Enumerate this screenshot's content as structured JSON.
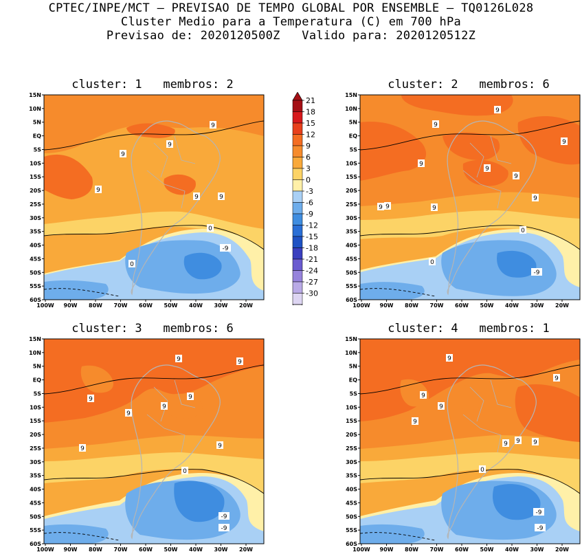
{
  "header": {
    "line1": "CPTEC/INPE/MCT – PREVISAO DE TEMPO GLOBAL POR ENSEMBLE – TQ0126L028",
    "line2": "Cluster Medio para a Temperatura (C) em 700 hPa",
    "line3": "Previsao de: 2020120500Z   Valido para: 2020120512Z"
  },
  "panels": [
    {
      "title": "cluster: 1   membros: 2",
      "labels": [
        "9",
        "9",
        "9",
        "9",
        "9",
        "9",
        "0",
        "0",
        "-9"
      ]
    },
    {
      "title": "cluster: 2   membros: 6",
      "labels": [
        "9",
        "9",
        "9",
        "9",
        "9",
        "9",
        "9",
        "9",
        "9",
        "9",
        "0",
        "0",
        "-9"
      ]
    },
    {
      "title": "cluster: 3   membros: 6",
      "labels": [
        "9",
        "9",
        "9",
        "9",
        "9",
        "9",
        "9",
        "9",
        "0",
        "-9",
        "-9"
      ]
    },
    {
      "title": "cluster: 4   membros: 1",
      "labels": [
        "9",
        "9",
        "9",
        "9",
        "9",
        "9",
        "9",
        "9",
        "0",
        "-9",
        "-9"
      ]
    }
  ],
  "axes": {
    "lat_ticks": [
      "15N",
      "10N",
      "5N",
      "EQ",
      "5S",
      "10S",
      "15S",
      "20S",
      "25S",
      "30S",
      "35S",
      "40S",
      "45S",
      "50S",
      "55S",
      "60S"
    ],
    "lon_ticks": [
      "100W",
      "90W",
      "80W",
      "70W",
      "60W",
      "50W",
      "40W",
      "30W",
      "20W"
    ]
  },
  "legend": {
    "values": [
      "21",
      "18",
      "15",
      "12",
      "9",
      "6",
      "3",
      "0",
      "-3",
      "-6",
      "-9",
      "-12",
      "-15",
      "-18",
      "-21",
      "-24",
      "-27",
      "-30"
    ],
    "colors": [
      "#a50f15",
      "#d7191c",
      "#e8401c",
      "#f46d22",
      "#f68b2c",
      "#f9a93a",
      "#fcd366",
      "#fff0a8",
      "#a9d0f5",
      "#6eadeb",
      "#3f8de0",
      "#2a6fd6",
      "#1f52c4",
      "#3a3fbf",
      "#6a5bd0",
      "#9683dc",
      "#b9aae6",
      "#ddd5f2"
    ]
  },
  "colors": {
    "warm_deep": "#f46d22",
    "warm": "#f68b2c",
    "warm_light": "#f9a93a",
    "yellow": "#fcd366",
    "pale_yellow": "#fff0a8",
    "light_blue": "#a9d0f5",
    "blue": "#6eadeb",
    "mid_blue": "#3f8de0",
    "deep_blue": "#2a6fd6",
    "red": "#d7191c",
    "coast": "#b5b5b5"
  }
}
